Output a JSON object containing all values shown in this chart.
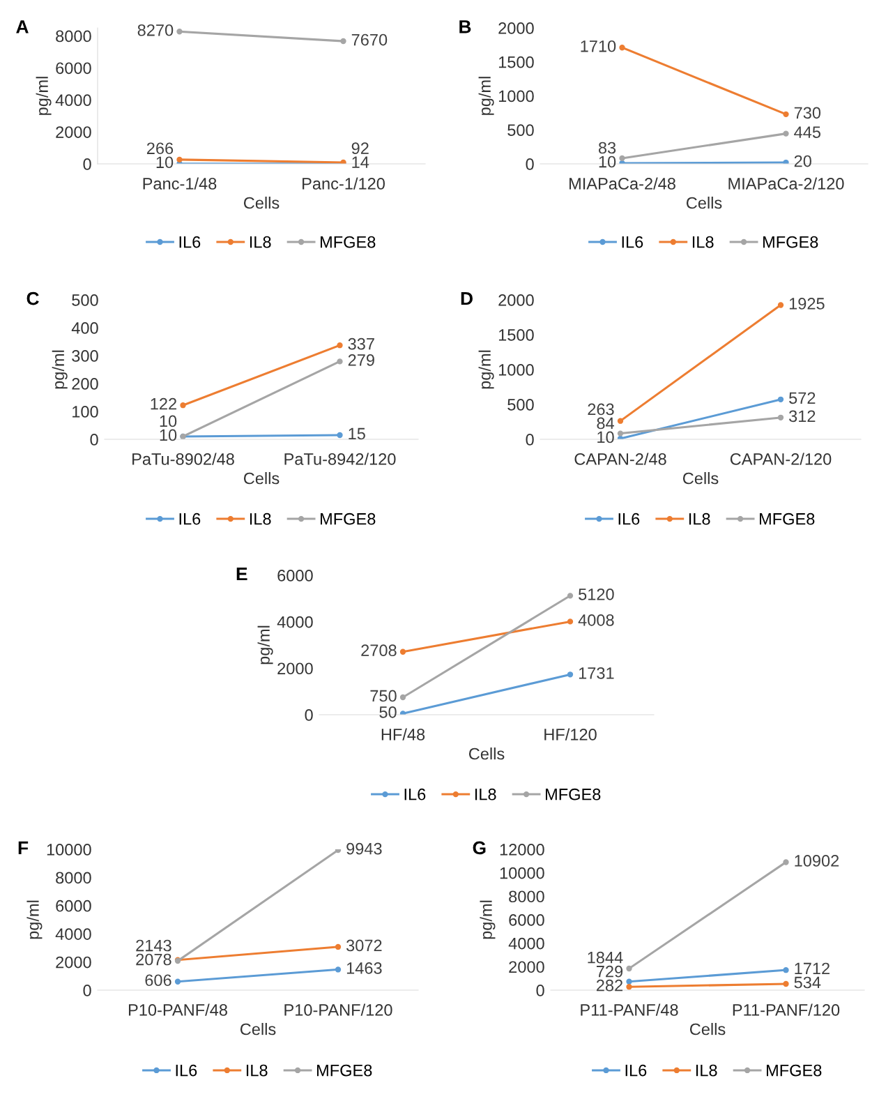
{
  "chart_data": [
    {
      "type": "line",
      "title": "A",
      "xlabel": "Cells",
      "ylabel": "pg/ml",
      "categories": [
        "Panc-1/48",
        "Panc-1/120"
      ],
      "ylim": [
        0,
        8500
      ],
      "yticks": [
        0,
        2000,
        4000,
        6000,
        8000
      ],
      "marker": "circle",
      "data_labels": true,
      "legend": "bottom",
      "grid": false,
      "series": [
        {
          "name": "IL6",
          "color": "#5b9bd5",
          "values": [
            10,
            14
          ]
        },
        {
          "name": "IL8",
          "color": "#ed7d31",
          "values": [
            266,
            92
          ]
        },
        {
          "name": "MFGE8",
          "color": "#a5a5a5",
          "values": [
            8270,
            7670
          ]
        }
      ]
    },
    {
      "type": "line",
      "title": "B",
      "xlabel": "Cells",
      "ylabel": "pg/ml",
      "categories": [
        "MIAPaCa-2/48",
        "MIAPaCa-2/120"
      ],
      "ylim": [
        0,
        2000
      ],
      "yticks": [
        0,
        500,
        1000,
        1500,
        2000
      ],
      "marker": "circle",
      "data_labels": true,
      "legend": "bottom",
      "grid": false,
      "series": [
        {
          "name": "IL6",
          "color": "#5b9bd5",
          "values": [
            10,
            20
          ]
        },
        {
          "name": "IL8",
          "color": "#ed7d31",
          "values": [
            1710,
            730
          ]
        },
        {
          "name": "MFGE8",
          "color": "#a5a5a5",
          "values": [
            83,
            445
          ]
        }
      ]
    },
    {
      "type": "line",
      "title": "C",
      "xlabel": "Cells",
      "ylabel": "pg/ml",
      "categories": [
        "PaTu-8902/48",
        "PaTu-8942/120"
      ],
      "ylim": [
        0,
        500
      ],
      "yticks": [
        0,
        100,
        200,
        300,
        400,
        500
      ],
      "marker": "circle",
      "data_labels": true,
      "legend": "bottom",
      "grid": false,
      "series": [
        {
          "name": "IL6",
          "color": "#5b9bd5",
          "values": [
            10,
            15
          ]
        },
        {
          "name": "IL8",
          "color": "#ed7d31",
          "values": [
            122,
            337
          ]
        },
        {
          "name": "MFGE8",
          "color": "#a5a5a5",
          "values": [
            10,
            279
          ]
        }
      ]
    },
    {
      "type": "line",
      "title": "D",
      "xlabel": "Cells",
      "ylabel": "pg/ml",
      "categories": [
        "CAPAN-2/48",
        "CAPAN-2/120"
      ],
      "ylim": [
        0,
        2000
      ],
      "yticks": [
        0,
        500,
        1000,
        1500,
        2000
      ],
      "marker": "circle",
      "data_labels": true,
      "legend": "bottom",
      "grid": false,
      "series": [
        {
          "name": "IL6",
          "color": "#5b9bd5",
          "values": [
            10,
            572
          ]
        },
        {
          "name": "IL8",
          "color": "#ed7d31",
          "values": [
            263,
            1925
          ]
        },
        {
          "name": "MFGE8",
          "color": "#a5a5a5",
          "values": [
            84,
            312
          ]
        }
      ]
    },
    {
      "type": "line",
      "title": "E",
      "xlabel": "Cells",
      "ylabel": "pg/ml",
      "categories": [
        "HF/48",
        "HF/120"
      ],
      "ylim": [
        0,
        6000
      ],
      "yticks": [
        0,
        2000,
        4000,
        6000
      ],
      "marker": "circle",
      "data_labels": true,
      "legend": "bottom",
      "grid": false,
      "series": [
        {
          "name": "IL6",
          "color": "#5b9bd5",
          "values": [
            50,
            1731
          ]
        },
        {
          "name": "IL8",
          "color": "#ed7d31",
          "values": [
            2708,
            4008
          ]
        },
        {
          "name": "MFGE8",
          "color": "#a5a5a5",
          "values": [
            750,
            5120
          ]
        }
      ]
    },
    {
      "type": "line",
      "title": "F",
      "xlabel": "Cells",
      "ylabel": "pg/ml",
      "categories": [
        "P10-PANF/48",
        "P10-PANF/120"
      ],
      "ylim": [
        0,
        10000
      ],
      "yticks": [
        0,
        2000,
        4000,
        6000,
        8000,
        10000
      ],
      "marker": "circle",
      "data_labels": true,
      "legend": "bottom",
      "grid": false,
      "series": [
        {
          "name": "IL6",
          "color": "#5b9bd5",
          "values": [
            606,
            1463
          ]
        },
        {
          "name": "IL8",
          "color": "#ed7d31",
          "values": [
            2143,
            3072
          ]
        },
        {
          "name": "MFGE8",
          "color": "#a5a5a5",
          "values": [
            2078,
            9943
          ]
        }
      ]
    },
    {
      "type": "line",
      "title": "G",
      "xlabel": "Cells",
      "ylabel": "pg/ml",
      "categories": [
        "P11-PANF/48",
        "P11-PANF/120"
      ],
      "ylim": [
        0,
        12000
      ],
      "yticks": [
        0,
        2000,
        4000,
        6000,
        8000,
        10000,
        12000
      ],
      "marker": "circle",
      "data_labels": true,
      "legend": "bottom",
      "grid": false,
      "series": [
        {
          "name": "IL6",
          "color": "#5b9bd5",
          "values": [
            729,
            1712
          ]
        },
        {
          "name": "IL8",
          "color": "#ed7d31",
          "values": [
            282,
            534
          ]
        },
        {
          "name": "MFGE8",
          "color": "#a5a5a5",
          "values": [
            1844,
            10902
          ]
        }
      ]
    }
  ]
}
